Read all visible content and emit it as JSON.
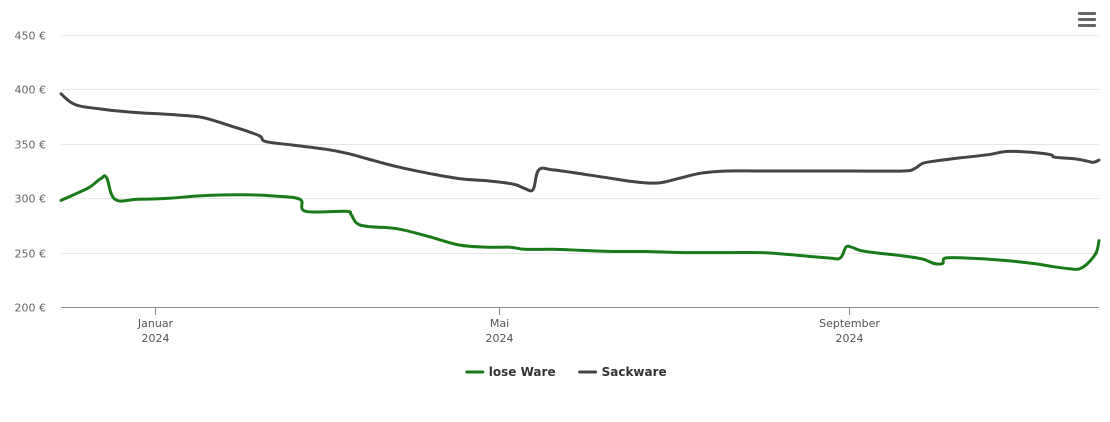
{
  "menu": {
    "icon": "hamburger-menu-icon"
  },
  "chart_data": {
    "type": "line",
    "title": "",
    "xlabel": "",
    "ylabel": "",
    "ylim": [
      200,
      450
    ],
    "xlim": [
      "2023-11-29",
      "2024-11-28"
    ],
    "y_ticks": [
      {
        "value": 200,
        "label": "200 €"
      },
      {
        "value": 250,
        "label": "250 €"
      },
      {
        "value": 300,
        "label": "300 €"
      },
      {
        "value": 350,
        "label": "350 €"
      },
      {
        "value": 400,
        "label": "400 €"
      },
      {
        "value": 450,
        "label": "450 €"
      }
    ],
    "x_ticks": [
      {
        "date": "2024-01-01",
        "month": "Januar",
        "year": "2024"
      },
      {
        "date": "2024-05-01",
        "month": "Mai",
        "year": "2024"
      },
      {
        "date": "2024-09-01",
        "month": "September",
        "year": "2024"
      }
    ],
    "grid": true,
    "legend": "bottom-center",
    "series": [
      {
        "name": "lose Ware",
        "color": "#1a7a1a",
        "points": [
          [
            "2023-11-29",
            298
          ],
          [
            "2023-12-05",
            305
          ],
          [
            "2023-12-09",
            310
          ],
          [
            "2023-12-13",
            318
          ],
          [
            "2023-12-15",
            319
          ],
          [
            "2023-12-18",
            299
          ],
          [
            "2023-12-26",
            299
          ],
          [
            "2024-01-06",
            300
          ],
          [
            "2024-01-16",
            302
          ],
          [
            "2024-01-26",
            303
          ],
          [
            "2024-02-04",
            303
          ],
          [
            "2024-02-12",
            302
          ],
          [
            "2024-02-21",
            299
          ],
          [
            "2024-02-23",
            288
          ],
          [
            "2024-03-08",
            288
          ],
          [
            "2024-03-10",
            285
          ],
          [
            "2024-03-12",
            277
          ],
          [
            "2024-03-16",
            274
          ],
          [
            "2024-03-26",
            272
          ],
          [
            "2024-04-06",
            265
          ],
          [
            "2024-04-17",
            257
          ],
          [
            "2024-04-27",
            255
          ],
          [
            "2024-05-05",
            255
          ],
          [
            "2024-05-10",
            253
          ],
          [
            "2024-05-20",
            253
          ],
          [
            "2024-05-30",
            252
          ],
          [
            "2024-06-10",
            251
          ],
          [
            "2024-06-22",
            251
          ],
          [
            "2024-07-05",
            250
          ],
          [
            "2024-07-20",
            250
          ],
          [
            "2024-08-01",
            250
          ],
          [
            "2024-08-12",
            248
          ],
          [
            "2024-08-25",
            245
          ],
          [
            "2024-08-29",
            245
          ],
          [
            "2024-08-31",
            255
          ],
          [
            "2024-09-02",
            255
          ],
          [
            "2024-09-05",
            252
          ],
          [
            "2024-09-10",
            250
          ],
          [
            "2024-09-20",
            247
          ],
          [
            "2024-09-27",
            244
          ],
          [
            "2024-10-01",
            240
          ],
          [
            "2024-10-04",
            240
          ],
          [
            "2024-10-05",
            245
          ],
          [
            "2024-10-12",
            245
          ],
          [
            "2024-10-25",
            243
          ],
          [
            "2024-11-05",
            240
          ],
          [
            "2024-11-12",
            237
          ],
          [
            "2024-11-18",
            235
          ],
          [
            "2024-11-21",
            235
          ],
          [
            "2024-11-24",
            240
          ],
          [
            "2024-11-27",
            250
          ],
          [
            "2024-11-28",
            261
          ]
        ]
      },
      {
        "name": "Sackware",
        "color": "#444444",
        "points": [
          [
            "2023-11-29",
            396
          ],
          [
            "2023-12-04",
            386
          ],
          [
            "2023-12-13",
            382
          ],
          [
            "2023-12-24",
            379
          ],
          [
            "2024-01-06",
            377
          ],
          [
            "2024-01-16",
            375
          ],
          [
            "2024-01-21",
            372
          ],
          [
            "2024-01-27",
            367
          ],
          [
            "2024-02-02",
            362
          ],
          [
            "2024-02-07",
            357
          ],
          [
            "2024-02-09",
            352
          ],
          [
            "2024-02-18",
            349
          ],
          [
            "2024-03-01",
            345
          ],
          [
            "2024-03-09",
            341
          ],
          [
            "2024-03-16",
            336
          ],
          [
            "2024-03-26",
            329
          ],
          [
            "2024-04-06",
            323
          ],
          [
            "2024-04-17",
            318
          ],
          [
            "2024-04-27",
            316
          ],
          [
            "2024-05-06",
            313
          ],
          [
            "2024-05-10",
            309
          ],
          [
            "2024-05-13",
            308
          ],
          [
            "2024-05-15",
            326
          ],
          [
            "2024-05-20",
            326
          ],
          [
            "2024-05-31",
            322
          ],
          [
            "2024-06-10",
            318
          ],
          [
            "2024-06-18",
            315
          ],
          [
            "2024-06-26",
            314
          ],
          [
            "2024-07-03",
            318
          ],
          [
            "2024-07-11",
            323
          ],
          [
            "2024-07-20",
            325
          ],
          [
            "2024-08-01",
            325
          ],
          [
            "2024-08-15",
            325
          ],
          [
            "2024-09-01",
            325
          ],
          [
            "2024-09-20",
            325
          ],
          [
            "2024-09-24",
            327
          ],
          [
            "2024-09-27",
            332
          ],
          [
            "2024-10-01",
            334
          ],
          [
            "2024-10-10",
            337
          ],
          [
            "2024-10-20",
            340
          ],
          [
            "2024-10-27",
            343
          ],
          [
            "2024-11-05",
            342
          ],
          [
            "2024-11-11",
            340
          ],
          [
            "2024-11-12",
            338
          ],
          [
            "2024-11-15",
            337
          ],
          [
            "2024-11-20",
            336
          ],
          [
            "2024-11-24",
            334
          ],
          [
            "2024-11-26",
            333
          ],
          [
            "2024-11-28",
            335
          ]
        ]
      }
    ]
  }
}
